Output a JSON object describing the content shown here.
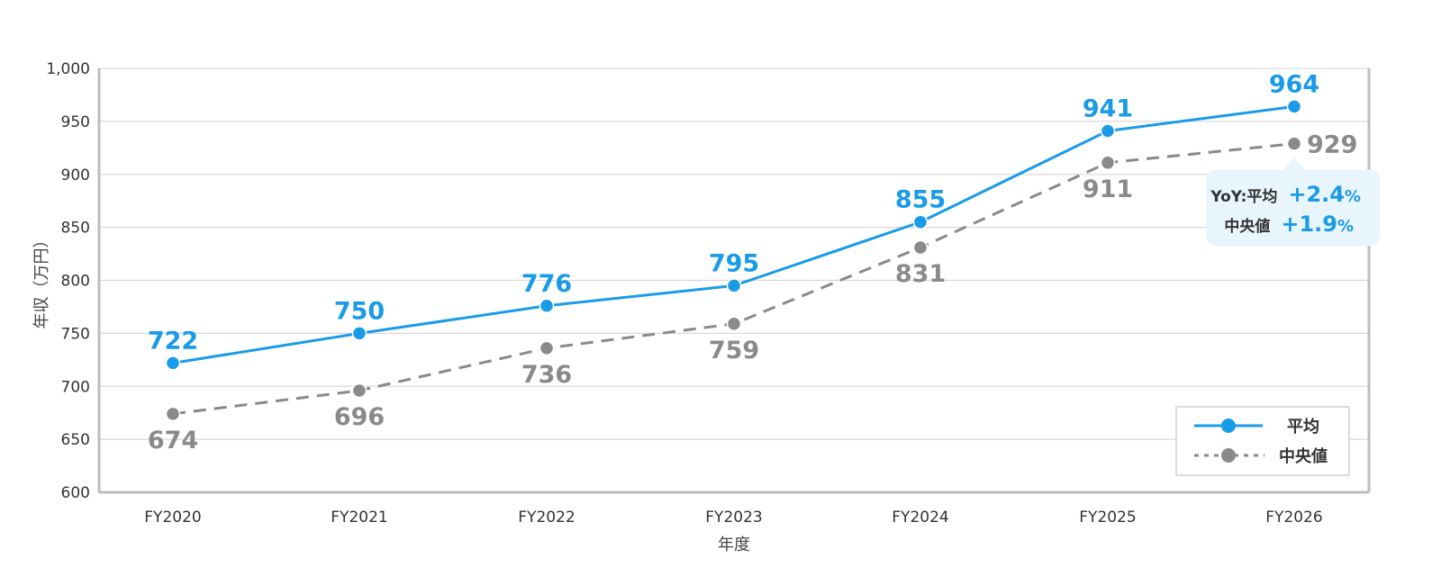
{
  "chart_data": {
    "type": "line",
    "title": "",
    "xlabel": "年度",
    "ylabel": "年収（万円）",
    "categories": [
      "FY2020",
      "FY2021",
      "FY2022",
      "FY2023",
      "FY2024",
      "FY2025",
      "FY2026"
    ],
    "ylim": [
      600,
      1000
    ],
    "yticks": [
      "600",
      "650",
      "700",
      "750",
      "800",
      "850",
      "900",
      "950",
      "1,000"
    ],
    "grid": true,
    "legend_position": "bottom-right",
    "series": [
      {
        "name": "平均",
        "values": [
          722,
          750,
          776,
          795,
          855,
          941,
          964
        ],
        "labels": [
          "722",
          "750",
          "776",
          "795",
          "855",
          "941",
          "964"
        ],
        "color": "#1a9be8",
        "style": "solid"
      },
      {
        "name": "中央値",
        "values": [
          674,
          696,
          736,
          759,
          831,
          911,
          929
        ],
        "labels": [
          "674",
          "696",
          "736",
          "759",
          "831",
          "911",
          "929"
        ],
        "color": "#8a8a8a",
        "style": "dashed"
      }
    ],
    "annotation": {
      "line1_label": "YoY:平均",
      "line1_value": "+2.4",
      "line2_label": "中央値",
      "line2_value": "+1.9",
      "unit": "%"
    }
  }
}
